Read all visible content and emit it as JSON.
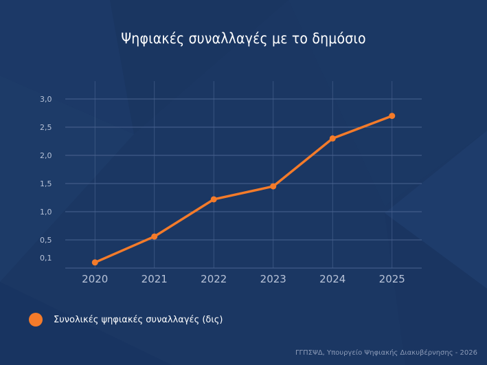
{
  "title": "Ψηφιακές συναλλαγές με το δημόσιο",
  "legend": {
    "label": "Συνολικές ψηφιακές συναλλαγές (δις)",
    "color": "#f47b2a"
  },
  "footer": "ΓΓΠΣΨΔ, Υπουργείο Ψηφιακής Διακυβέρνησης - 2026",
  "colors": {
    "background": "#1b3763",
    "line": "#f47b2a",
    "grid": "#4a6390",
    "text": "#b8c3d8"
  },
  "chart_data": {
    "type": "line",
    "title": "Ψηφιακές συναλλαγές με το δημόσιο",
    "xlabel": "",
    "ylabel": "",
    "categories": [
      "2020",
      "2021",
      "2022",
      "2023",
      "2024",
      "2025"
    ],
    "series": [
      {
        "name": "Συνολικές ψηφιακές συναλλαγές (δις)",
        "values": [
          0.1,
          0.56,
          1.22,
          1.45,
          2.3,
          2.7
        ]
      }
    ],
    "y_ticks": [
      "0,1",
      "0,5",
      "1,0",
      "1,5",
      "2,0",
      "2,5",
      "3,0"
    ],
    "ylim": [
      0,
      3.0
    ],
    "grid": true,
    "legend_position": "bottom-left"
  }
}
